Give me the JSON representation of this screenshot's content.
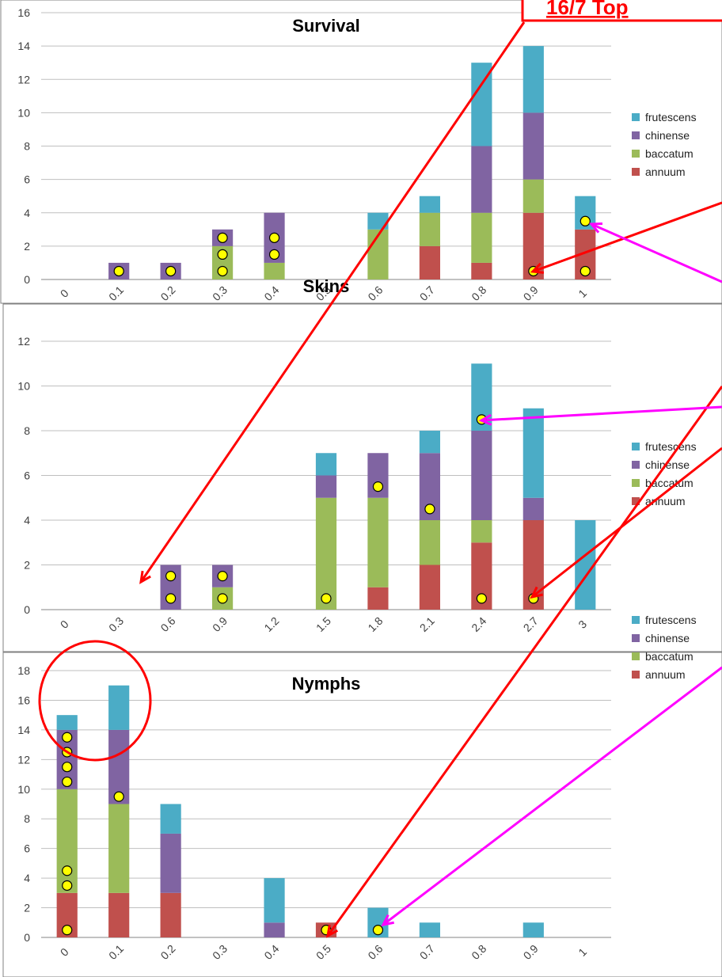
{
  "header_fragment": "16/7 Top",
  "colors": {
    "annuum": "#c0504d",
    "baccatum": "#9bbb59",
    "chinense": "#8064a2",
    "frutescens": "#4bacc6",
    "marker_fill": "#ffff00",
    "arrow_red": "#ff0000",
    "arrow_magenta": "#ff00ff"
  },
  "legend": [
    "frutescens",
    "chinense",
    "baccatum",
    "annuum"
  ],
  "chart_data": [
    {
      "type": "bar",
      "stacked": true,
      "title": "Survival",
      "categories": [
        "0",
        "0.1",
        "0.2",
        "0.3",
        "0.4",
        "0.5",
        "0.6",
        "0.7",
        "0.8",
        "0.9",
        "1"
      ],
      "ylim": [
        0,
        16
      ],
      "yticks": [
        "0",
        "2",
        "4",
        "6",
        "8",
        "10",
        "12",
        "14",
        "16"
      ],
      "series": [
        {
          "name": "annuum",
          "values": [
            0,
            0,
            0,
            0,
            0,
            0,
            0,
            2,
            1,
            4,
            3
          ]
        },
        {
          "name": "baccatum",
          "values": [
            0,
            0,
            0,
            2,
            1,
            0,
            3,
            2,
            3,
            2,
            0
          ]
        },
        {
          "name": "chinense",
          "values": [
            0,
            1,
            1,
            1,
            3,
            0,
            0,
            0,
            4,
            4,
            0
          ]
        },
        {
          "name": "frutescens",
          "values": [
            0,
            0,
            0,
            0,
            0,
            0,
            1,
            1,
            5,
            4,
            2
          ]
        }
      ],
      "markers": [
        [
          1,
          0.5
        ],
        [
          2,
          0.5
        ],
        [
          3,
          0.5
        ],
        [
          3,
          1.5
        ],
        [
          3,
          2.5
        ],
        [
          4,
          1.5
        ],
        [
          4,
          2.5
        ],
        [
          9,
          0.5
        ],
        [
          10,
          0.5
        ],
        [
          10,
          3.5
        ]
      ]
    },
    {
      "type": "bar",
      "stacked": true,
      "title": "Skins",
      "categories": [
        "0",
        "0.3",
        "0.6",
        "0.9",
        "1.2",
        "1.5",
        "1.8",
        "2.1",
        "2.4",
        "2.7",
        "3"
      ],
      "ylim": [
        0,
        12
      ],
      "yticks": [
        "0",
        "2",
        "4",
        "6",
        "8",
        "10",
        "12"
      ],
      "series": [
        {
          "name": "annuum",
          "values": [
            0,
            0,
            0,
            0,
            0,
            0,
            1,
            2,
            3,
            4,
            0
          ]
        },
        {
          "name": "baccatum",
          "values": [
            0,
            0,
            0,
            1,
            0,
            5,
            4,
            2,
            1,
            0,
            0
          ]
        },
        {
          "name": "chinense",
          "values": [
            0,
            0,
            2,
            1,
            0,
            1,
            2,
            3,
            4,
            1,
            0
          ]
        },
        {
          "name": "frutescens",
          "values": [
            0,
            0,
            0,
            0,
            0,
            1,
            0,
            1,
            3,
            4,
            4
          ]
        }
      ],
      "markers": [
        [
          2,
          0.5
        ],
        [
          2,
          1.5
        ],
        [
          3,
          0.5
        ],
        [
          3,
          1.5
        ],
        [
          5,
          0.5
        ],
        [
          6,
          5.5
        ],
        [
          7,
          4.5
        ],
        [
          8,
          0.5
        ],
        [
          8,
          8.5
        ],
        [
          9,
          0.5
        ]
      ]
    },
    {
      "type": "bar",
      "stacked": true,
      "title": "Nymphs",
      "categories": [
        "0",
        "0.1",
        "0.2",
        "0.3",
        "0.4",
        "0.5",
        "0.6",
        "0.7",
        "0.8",
        "0.9",
        "1"
      ],
      "ylim": [
        0,
        18
      ],
      "yticks": [
        "0",
        "2",
        "4",
        "6",
        "8",
        "10",
        "12",
        "14",
        "16",
        "18"
      ],
      "series": [
        {
          "name": "annuum",
          "values": [
            3,
            3,
            3,
            0,
            0,
            1,
            0,
            0,
            0,
            0,
            0
          ]
        },
        {
          "name": "baccatum",
          "values": [
            7,
            6,
            0,
            0,
            0,
            0,
            0,
            0,
            0,
            0,
            0
          ]
        },
        {
          "name": "chinense",
          "values": [
            4,
            5,
            4,
            0,
            1,
            0,
            0,
            0,
            0,
            0,
            0
          ]
        },
        {
          "name": "frutescens",
          "values": [
            1,
            3,
            2,
            0,
            3,
            0,
            2,
            1,
            0,
            1,
            0
          ]
        }
      ],
      "markers": [
        [
          0,
          0.5
        ],
        [
          0,
          3.5
        ],
        [
          0,
          4.5
        ],
        [
          0,
          10.5
        ],
        [
          0,
          11.5
        ],
        [
          0,
          12.5
        ],
        [
          0,
          13.5
        ],
        [
          1,
          9.5
        ],
        [
          5,
          0.5
        ],
        [
          6,
          0.5
        ]
      ]
    }
  ]
}
